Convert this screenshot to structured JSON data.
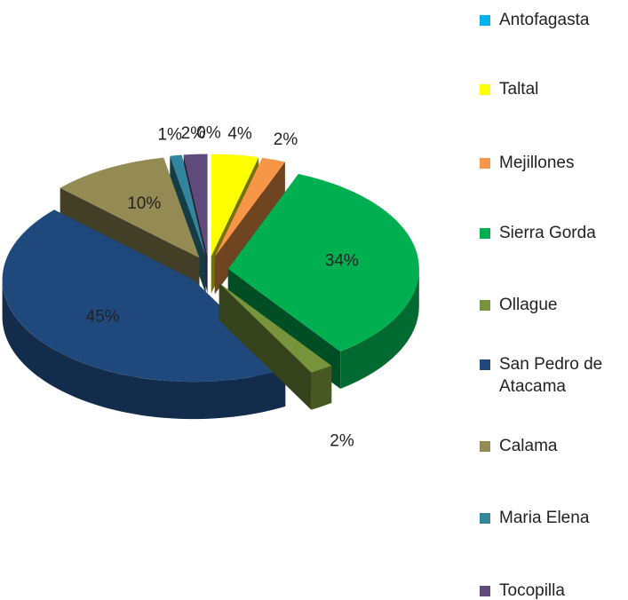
{
  "chart_data": {
    "type": "pie",
    "categories": [
      "Antofagasta",
      "Taltal",
      "Mejillones",
      "Sierra Gorda",
      "Ollague",
      "San Pedro de Atacama",
      "Calama",
      "Maria Elena",
      "Tocopilla"
    ],
    "values": [
      0,
      4,
      2,
      34,
      2,
      45,
      10,
      1,
      2
    ],
    "value_labels": [
      "0%",
      "4%",
      "2%",
      "34%",
      "2%",
      "45%",
      "10%",
      "1%",
      "2%"
    ],
    "colors": [
      "#00b0f0",
      "#ffff00",
      "#f79646",
      "#00b050",
      "#77933c",
      "#1f497d",
      "#948a54",
      "#31859c",
      "#604a7b"
    ],
    "legend": "right"
  }
}
